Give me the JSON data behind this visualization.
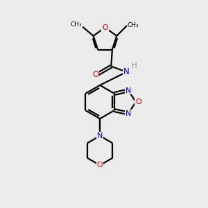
{
  "background_color": "#ebebeb",
  "bond_color": "#000000",
  "atom_colors": {
    "O": "#e00000",
    "N": "#0000e0",
    "C": "#000000",
    "H": "#7a9a9a"
  },
  "figsize": [
    3.0,
    3.0
  ],
  "dpi": 100,
  "lw": 1.6,
  "fs": 8.0
}
